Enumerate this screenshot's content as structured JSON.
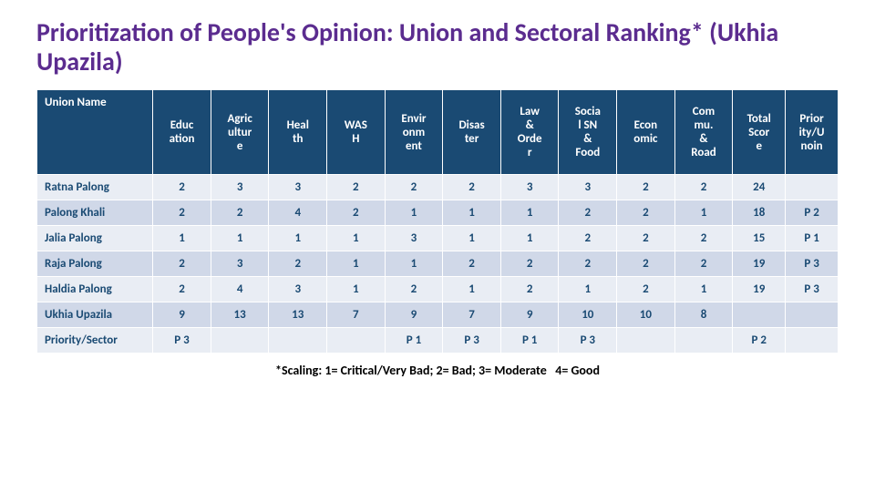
{
  "title": "Prioritization of People's Opinion: Union and Sectoral Ranking* (Ukhia Upazila)",
  "headers": [
    "Union Name",
    "Educ\nation",
    "Agric\nultur\ne",
    "Heal\nth",
    "WAS\nH",
    "Envir\nonm\nent",
    "Disas\nter",
    "Law\n&\nOrde\nr",
    "Socia\nl SN\n&\nFood",
    "Econ\nomic",
    "Com\nmu.\n&\nRoad",
    "Total\nScor\ne",
    "Prior\nity/U\nnoin"
  ],
  "rows": [
    {
      "alt": false,
      "c": [
        "Ratna Palong",
        "2",
        "3",
        "3",
        "2",
        "2",
        "2",
        "3",
        "3",
        "2",
        "2",
        "24",
        ""
      ]
    },
    {
      "alt": true,
      "c": [
        "Palong Khali",
        "2",
        "2",
        "4",
        "2",
        "1",
        "1",
        "1",
        "2",
        "2",
        "1",
        "18",
        "P 2"
      ]
    },
    {
      "alt": false,
      "c": [
        "Jalia Palong",
        "1",
        "1",
        "1",
        "1",
        "3",
        "1",
        "1",
        "2",
        "2",
        "2",
        "15",
        "P 1"
      ]
    },
    {
      "alt": true,
      "c": [
        "Raja Palong",
        "2",
        "3",
        "2",
        "1",
        "1",
        "2",
        "2",
        "2",
        "2",
        "2",
        "19",
        "P 3"
      ]
    },
    {
      "alt": false,
      "c": [
        "Haldia Palong",
        "2",
        "4",
        "3",
        "1",
        "2",
        "1",
        "2",
        "1",
        "2",
        "1",
        "19",
        "P 3"
      ]
    },
    {
      "alt": true,
      "c": [
        "Ukhia Upazila",
        "9",
        "13",
        "13",
        "7",
        "9",
        "7",
        "9",
        "10",
        "10",
        "8",
        "",
        ""
      ]
    },
    {
      "alt": false,
      "c": [
        "Priority/Sector",
        "P 3",
        "",
        "",
        "",
        "P 1",
        "P 3",
        "P 1",
        "P 3",
        "",
        "",
        "P 2",
        ""
      ]
    }
  ],
  "footnote": "*Scaling: 1= Critical/Very Bad; 2= Bad; 3= Moderate   4= Good"
}
